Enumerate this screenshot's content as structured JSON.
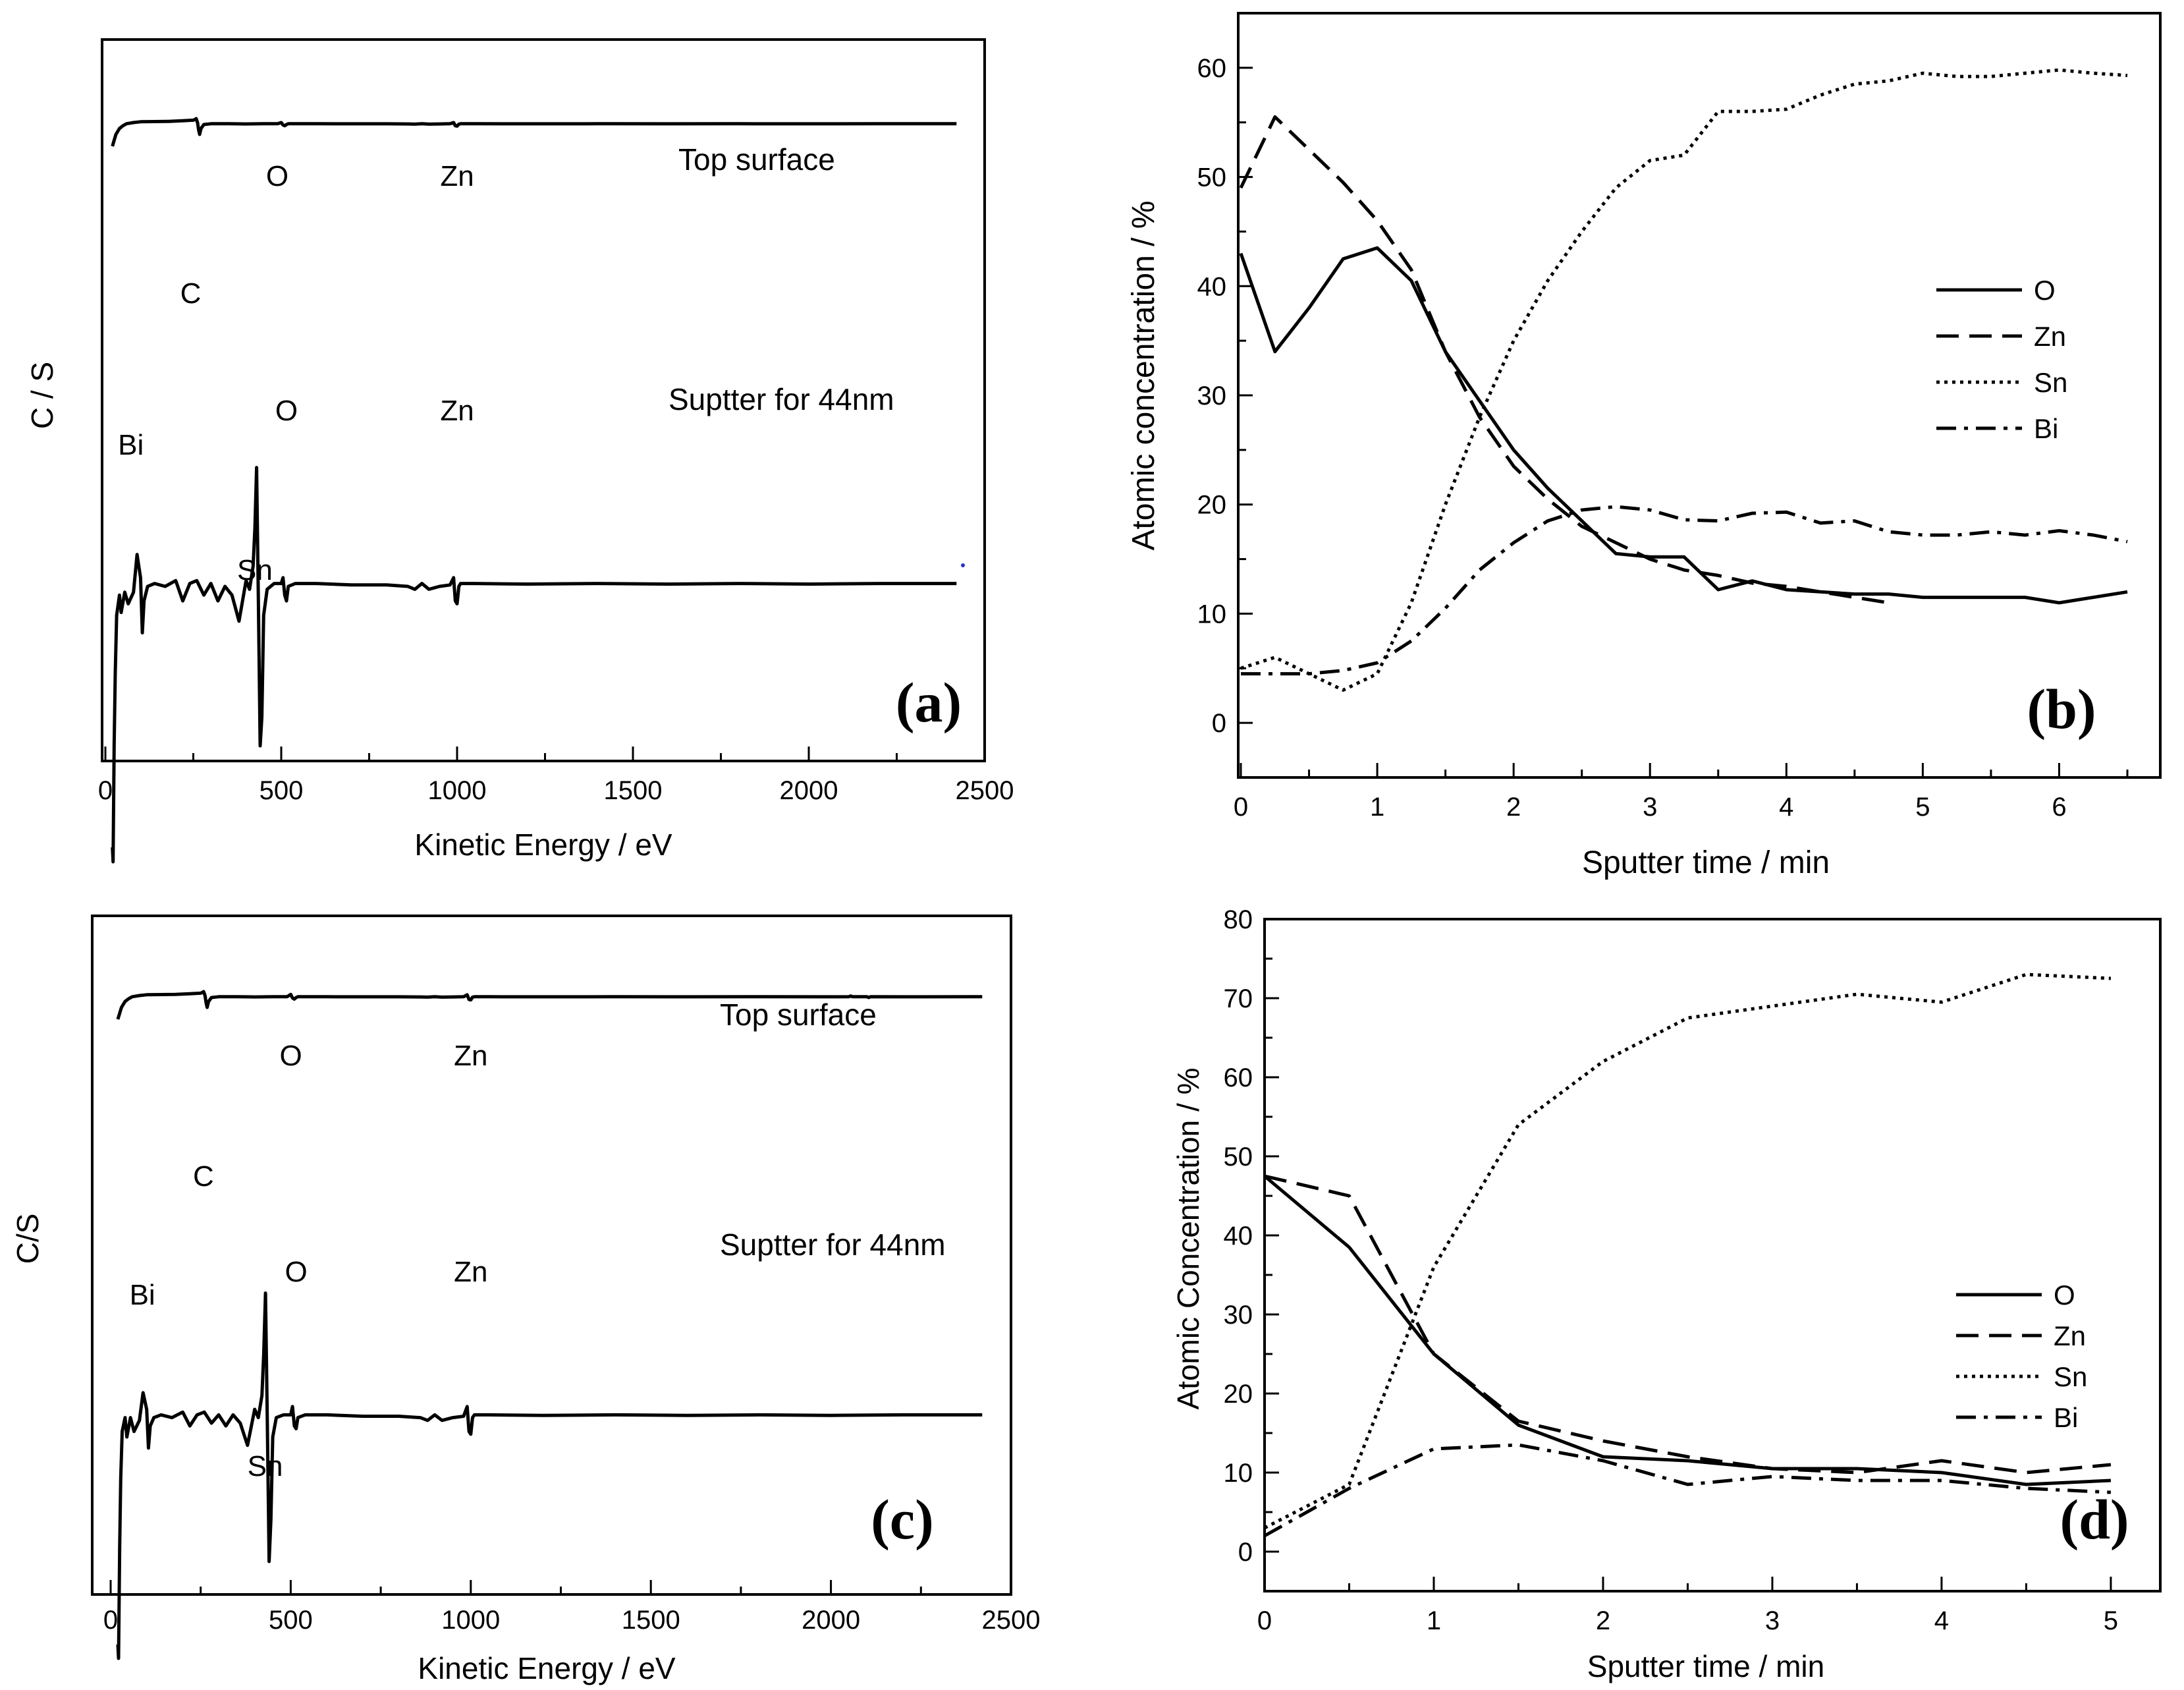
{
  "figure": {
    "panels": [
      "a",
      "b",
      "c",
      "d"
    ]
  },
  "chart_data": [
    {
      "id": "a",
      "type": "line",
      "panel_label": "(a)",
      "xlabel": "Kinetic Energy / eV",
      "ylabel": "C / S",
      "xlim": [
        0,
        2500
      ],
      "xticks": [
        0,
        500,
        1000,
        1500,
        2000,
        2500
      ],
      "yticks_shown": false,
      "series": [
        {
          "name": "Top surface",
          "x": [
            20,
            25,
            30,
            40,
            50,
            60,
            80,
            100,
            140,
            180,
            220,
            250,
            255,
            258,
            262,
            265,
            268,
            272,
            280,
            300,
            350,
            400,
            450,
            490,
            500,
            505,
            510,
            515,
            520,
            540,
            600,
            700,
            800,
            860,
            880,
            900,
            920,
            950,
            980,
            990,
            995,
            1000,
            1005,
            1010,
            1020,
            1050,
            1200,
            1400,
            1600,
            1800,
            2000,
            2200,
            2400,
            2420
          ],
          "y": [
            0.3,
            0.45,
            0.6,
            0.75,
            0.82,
            0.87,
            0.9,
            0.92,
            0.925,
            0.93,
            0.945,
            0.96,
            0.98,
            1.0,
            0.9,
            0.72,
            0.6,
            0.75,
            0.85,
            0.87,
            0.87,
            0.865,
            0.87,
            0.87,
            0.9,
            0.84,
            0.82,
            0.85,
            0.87,
            0.87,
            0.87,
            0.868,
            0.868,
            0.865,
            0.86,
            0.87,
            0.86,
            0.865,
            0.87,
            0.9,
            0.82,
            0.81,
            0.86,
            0.87,
            0.87,
            0.87,
            0.868,
            0.87,
            0.868,
            0.87,
            0.868,
            0.87,
            0.87,
            0.87
          ],
          "peak_labels": [
            {
              "text": "C",
              "x": 265
            },
            {
              "text": "O",
              "x": 515
            },
            {
              "text": "Zn",
              "x": 1000
            }
          ]
        },
        {
          "name": "Suptter for 44nm",
          "x": [
            20,
            22,
            25,
            28,
            32,
            40,
            45,
            55,
            65,
            80,
            90,
            100,
            105,
            110,
            120,
            140,
            170,
            200,
            220,
            240,
            260,
            280,
            300,
            320,
            340,
            360,
            380,
            400,
            410,
            420,
            425,
            430,
            435,
            440,
            445,
            450,
            460,
            480,
            500,
            505,
            510,
            515,
            520,
            540,
            600,
            700,
            800,
            860,
            880,
            900,
            920,
            950,
            980,
            990,
            995,
            1000,
            1005,
            1010,
            1020,
            1050,
            1200,
            1400,
            1600,
            1800,
            2000,
            2200,
            2400,
            2420
          ],
          "y": [
            -0.65,
            -0.7,
            -0.3,
            -0.05,
            0.15,
            0.22,
            0.16,
            0.23,
            0.19,
            0.23,
            0.36,
            0.28,
            0.09,
            0.2,
            0.25,
            0.26,
            0.25,
            0.27,
            0.2,
            0.26,
            0.27,
            0.22,
            0.26,
            0.2,
            0.25,
            0.22,
            0.13,
            0.27,
            0.24,
            0.32,
            0.45,
            0.66,
            0.2,
            -0.3,
            -0.2,
            0.15,
            0.24,
            0.26,
            0.26,
            0.28,
            0.22,
            0.2,
            0.25,
            0.26,
            0.26,
            0.255,
            0.255,
            0.25,
            0.24,
            0.26,
            0.24,
            0.25,
            0.255,
            0.28,
            0.2,
            0.19,
            0.25,
            0.26,
            0.26,
            0.26,
            0.258,
            0.26,
            0.258,
            0.26,
            0.258,
            0.26,
            0.26,
            0.26
          ],
          "peak_labels": [
            {
              "text": "Bi",
              "x": 110
            },
            {
              "text": "Sn",
              "x": 440
            },
            {
              "text": "O",
              "x": 515
            },
            {
              "text": "Zn",
              "x": 1000
            }
          ]
        }
      ]
    },
    {
      "id": "b",
      "type": "line",
      "panel_label": "(b)",
      "xlabel": "Sputter time / min",
      "ylabel": "Atomic concentration / %",
      "xlim": [
        0,
        6.5
      ],
      "ylim": [
        -5,
        65
      ],
      "xticks": [
        0,
        1,
        2,
        3,
        4,
        5,
        6
      ],
      "yticks": [
        0,
        10,
        20,
        30,
        40,
        50,
        60
      ],
      "legend": "right",
      "series": [
        {
          "name": "O",
          "style": "solid",
          "x": [
            0,
            0.25,
            0.5,
            0.75,
            1.0,
            1.25,
            1.5,
            1.75,
            2.0,
            2.25,
            2.5,
            2.75,
            3.0,
            3.25,
            3.5,
            3.75,
            4.0,
            4.25,
            4.5,
            4.75,
            5.0,
            5.25,
            5.5,
            5.75,
            6.0,
            6.25,
            6.5
          ],
          "y": [
            43,
            34,
            38,
            42.5,
            43.5,
            40.5,
            34,
            29.5,
            25,
            21.5,
            18.5,
            15.5,
            15.2,
            15.2,
            12.2,
            13,
            12.2,
            12,
            11.8,
            11.8,
            11.5,
            11.5,
            11.5,
            11.5,
            11,
            11.5,
            12
          ]
        },
        {
          "name": "Zn",
          "style": "dashed",
          "x": [
            0,
            0.25,
            0.5,
            0.75,
            1.0,
            1.25,
            1.5,
            1.75,
            2.0,
            2.25,
            2.5,
            2.75,
            3.0,
            3.25,
            3.5,
            3.75,
            4.0,
            4.25,
            4.5,
            4.75
          ],
          "y": [
            49,
            55.5,
            52.5,
            49.5,
            46,
            41.5,
            34,
            28,
            23.5,
            20.5,
            18,
            16.5,
            15,
            14,
            13.5,
            12.8,
            12.5,
            12,
            11.5,
            11
          ]
        },
        {
          "name": "Sn",
          "style": "dotted",
          "x": [
            0,
            0.25,
            0.5,
            0.75,
            1.0,
            1.25,
            1.5,
            1.75,
            2.0,
            2.25,
            2.5,
            2.75,
            3.0,
            3.25,
            3.5,
            3.75,
            4.0,
            4.25,
            4.5,
            4.75,
            5.0,
            5.25,
            5.5,
            5.75,
            6.0,
            6.25,
            6.5
          ],
          "y": [
            5,
            6,
            4.5,
            3,
            4.5,
            11,
            20,
            28,
            35,
            40.5,
            45,
            49,
            51.5,
            52,
            56,
            56,
            56.2,
            57.5,
            58.5,
            58.8,
            59.5,
            59.2,
            59.2,
            59.5,
            59.8,
            59.5,
            59.3
          ]
        },
        {
          "name": "Bi",
          "style": "dashdot",
          "x": [
            0,
            0.25,
            0.5,
            0.75,
            1.0,
            1.25,
            1.5,
            1.75,
            2.0,
            2.25,
            2.5,
            2.75,
            3.0,
            3.25,
            3.5,
            3.75,
            4.0,
            4.25,
            4.5,
            4.75,
            5.0,
            5.25,
            5.5,
            5.75,
            6.0,
            6.25,
            6.5
          ],
          "y": [
            4.5,
            4.5,
            4.5,
            4.8,
            5.5,
            7.5,
            10.5,
            14,
            16.5,
            18.5,
            19.5,
            19.8,
            19.5,
            18.6,
            18.5,
            19.2,
            19.3,
            18.3,
            18.5,
            17.5,
            17.2,
            17.2,
            17.5,
            17.2,
            17.6,
            17.2,
            16.6
          ]
        }
      ]
    },
    {
      "id": "c",
      "type": "line",
      "panel_label": "(c)",
      "xlabel": "Kinetic Energy / eV",
      "ylabel": "C/S",
      "xlim": [
        0,
        2500
      ],
      "xticks": [
        0,
        500,
        1000,
        1500,
        2000,
        2500
      ],
      "yticks_shown": false,
      "series": [
        {
          "name": "Top surface",
          "x": [
            20,
            25,
            30,
            40,
            50,
            60,
            80,
            100,
            140,
            180,
            220,
            250,
            255,
            258,
            262,
            265,
            268,
            272,
            280,
            300,
            350,
            400,
            450,
            490,
            500,
            505,
            510,
            515,
            520,
            540,
            600,
            700,
            800,
            860,
            880,
            900,
            920,
            950,
            980,
            990,
            995,
            1000,
            1005,
            1010,
            1020,
            1050,
            1200,
            1400,
            1600,
            1800,
            2000,
            2050,
            2055,
            2060,
            2100,
            2105,
            2110,
            2200,
            2400,
            2420
          ],
          "y": [
            0.3,
            0.45,
            0.6,
            0.75,
            0.82,
            0.87,
            0.9,
            0.92,
            0.925,
            0.93,
            0.945,
            0.96,
            0.98,
            1.0,
            0.9,
            0.72,
            0.6,
            0.75,
            0.85,
            0.87,
            0.87,
            0.865,
            0.87,
            0.87,
            0.93,
            0.84,
            0.81,
            0.85,
            0.87,
            0.87,
            0.87,
            0.868,
            0.868,
            0.865,
            0.86,
            0.87,
            0.86,
            0.865,
            0.87,
            0.92,
            0.8,
            0.79,
            0.86,
            0.87,
            0.87,
            0.87,
            0.868,
            0.87,
            0.868,
            0.87,
            0.868,
            0.87,
            0.89,
            0.87,
            0.87,
            0.85,
            0.87,
            0.868,
            0.87,
            0.87
          ],
          "peak_labels": [
            {
              "text": "C",
              "x": 265
            },
            {
              "text": "O",
              "x": 515
            },
            {
              "text": "Zn",
              "x": 1000
            }
          ]
        },
        {
          "name": "Suptter for 44nm",
          "x": [
            20,
            22,
            25,
            28,
            32,
            40,
            45,
            55,
            65,
            80,
            90,
            100,
            105,
            110,
            120,
            140,
            170,
            200,
            220,
            240,
            260,
            280,
            300,
            320,
            340,
            360,
            380,
            400,
            410,
            420,
            425,
            430,
            435,
            440,
            445,
            450,
            460,
            480,
            500,
            505,
            510,
            515,
            520,
            540,
            600,
            700,
            800,
            860,
            880,
            900,
            920,
            950,
            980,
            990,
            995,
            1000,
            1005,
            1010,
            1020,
            1050,
            1200,
            1400,
            1600,
            1800,
            2000,
            2200,
            2400,
            2420
          ],
          "y": [
            -0.55,
            -0.6,
            -0.2,
            0.05,
            0.22,
            0.27,
            0.2,
            0.27,
            0.22,
            0.26,
            0.36,
            0.3,
            0.16,
            0.24,
            0.27,
            0.28,
            0.27,
            0.29,
            0.24,
            0.28,
            0.29,
            0.25,
            0.28,
            0.24,
            0.28,
            0.25,
            0.17,
            0.3,
            0.27,
            0.35,
            0.5,
            0.72,
            0.25,
            -0.25,
            -0.1,
            0.2,
            0.27,
            0.28,
            0.28,
            0.31,
            0.24,
            0.23,
            0.27,
            0.28,
            0.28,
            0.275,
            0.275,
            0.27,
            0.26,
            0.28,
            0.26,
            0.27,
            0.275,
            0.31,
            0.22,
            0.21,
            0.27,
            0.28,
            0.28,
            0.28,
            0.278,
            0.28,
            0.278,
            0.28,
            0.278,
            0.28,
            0.28,
            0.28
          ],
          "peak_labels": [
            {
              "text": "Bi",
              "x": 110
            },
            {
              "text": "Sn",
              "x": 440
            },
            {
              "text": "O",
              "x": 515
            },
            {
              "text": "Zn",
              "x": 1000
            }
          ]
        }
      ]
    },
    {
      "id": "d",
      "type": "line",
      "panel_label": "(d)",
      "xlabel": "Sputter time / min",
      "ylabel": "Atomic Concentration / %",
      "xlim": [
        0,
        5.3
      ],
      "ylim": [
        -5,
        80
      ],
      "xticks": [
        0,
        1,
        2,
        3,
        4,
        5
      ],
      "yticks": [
        0,
        10,
        20,
        30,
        40,
        50,
        60,
        70,
        80
      ],
      "legend": "right",
      "series": [
        {
          "name": "O",
          "style": "solid",
          "x": [
            0,
            0.5,
            1.0,
            1.5,
            2.0,
            2.5,
            3.0,
            3.5,
            4.0,
            4.5,
            5.0
          ],
          "y": [
            47.5,
            38.5,
            25,
            16,
            12,
            11.5,
            10.5,
            10.5,
            10,
            8.5,
            9
          ]
        },
        {
          "name": "Zn",
          "style": "dashed",
          "x": [
            0,
            0.5,
            1.0,
            1.5,
            2.0,
            2.5,
            3.0,
            3.5,
            4.0,
            4.5,
            5.0
          ],
          "y": [
            47.5,
            45,
            25,
            16.5,
            14,
            12,
            10.5,
            10,
            11.5,
            10,
            11
          ]
        },
        {
          "name": "Sn",
          "style": "dotted",
          "x": [
            0,
            0.5,
            1.0,
            1.5,
            2.0,
            2.5,
            3.0,
            3.5,
            4.0,
            4.5,
            5.0
          ],
          "y": [
            3,
            8.5,
            36,
            54,
            62,
            67.5,
            69,
            70.5,
            69.5,
            73,
            72.5
          ]
        },
        {
          "name": "Bi",
          "style": "dashdot",
          "x": [
            0,
            0.5,
            1.0,
            1.5,
            2.0,
            2.5,
            3.0,
            3.5,
            4.0,
            4.5,
            5.0
          ],
          "y": [
            2,
            8,
            13,
            13.5,
            11.5,
            8.5,
            9.5,
            9,
            9,
            8,
            7.5
          ]
        }
      ]
    }
  ]
}
